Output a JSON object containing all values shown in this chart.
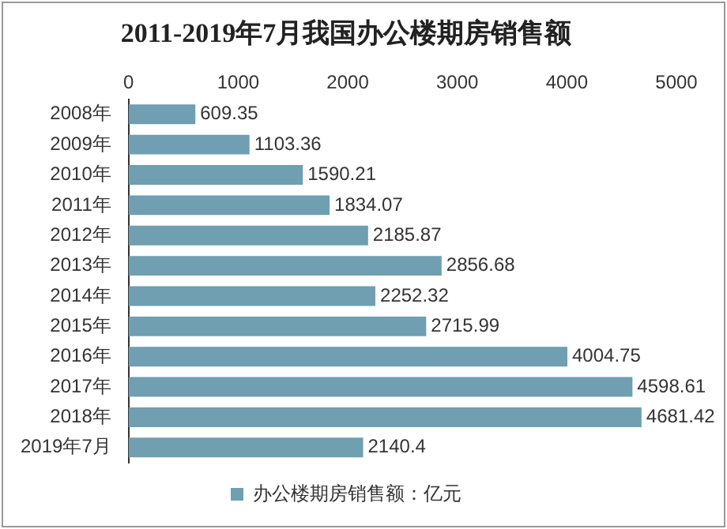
{
  "chart_data": {
    "type": "bar",
    "orientation": "horizontal",
    "title": "2011-2019年7月我国办公楼期房销售额",
    "categories": [
      "2008年",
      "2009年",
      "2010年",
      "2011年",
      "2012年",
      "2013年",
      "2014年",
      "2015年",
      "2016年",
      "2017年",
      "2018年",
      "2019年7月"
    ],
    "series": [
      {
        "name": "办公楼期房销售额：亿元",
        "color": "#6f9fb0",
        "values": [
          609.35,
          1103.36,
          1590.21,
          1834.07,
          2185.87,
          2856.68,
          2252.32,
          2715.99,
          4004.75,
          4598.61,
          4681.42,
          2140.4
        ]
      }
    ],
    "xlim": [
      0,
      5000
    ],
    "xticks": [
      0,
      1000,
      2000,
      3000,
      4000,
      5000
    ],
    "grid": false,
    "legend": "bottom",
    "data_labels": true
  }
}
